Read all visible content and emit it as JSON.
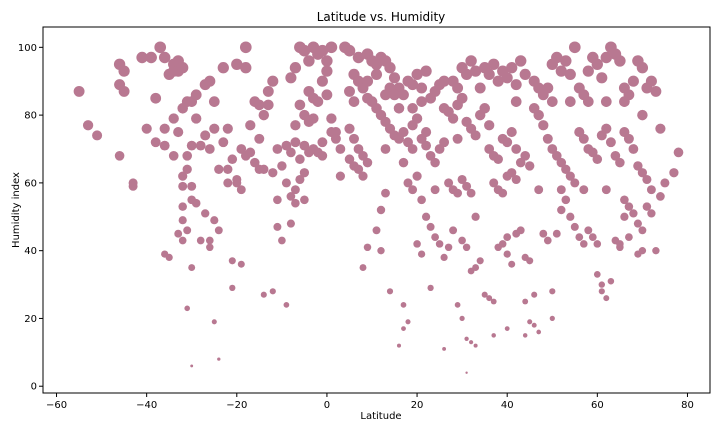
{
  "chart_data": {
    "type": "scatter",
    "title": "Latitude vs. Humidity",
    "xlabel": "Latitude",
    "ylabel": "Humidity index",
    "xlim": [
      -63,
      85
    ],
    "ylim": [
      -2,
      106
    ],
    "xticks": [
      -60,
      -40,
      -20,
      0,
      20,
      40,
      60,
      80
    ],
    "yticks": [
      0,
      20,
      40,
      60,
      80,
      100
    ],
    "grid": false,
    "marker_color": "#b87891",
    "size_encodes": "y",
    "points": [
      [
        -55,
        87
      ],
      [
        -53,
        77
      ],
      [
        -51,
        74
      ],
      [
        -46,
        68
      ],
      [
        -46,
        95
      ],
      [
        -45,
        93
      ],
      [
        -46,
        89
      ],
      [
        -45,
        87
      ],
      [
        -43,
        60
      ],
      [
        -43,
        59
      ],
      [
        -41,
        97
      ],
      [
        -40,
        76
      ],
      [
        -39,
        97
      ],
      [
        -38,
        85
      ],
      [
        -37,
        100
      ],
      [
        -36,
        97
      ],
      [
        -38,
        72
      ],
      [
        -36,
        76
      ],
      [
        -36,
        71
      ],
      [
        -35,
        92
      ],
      [
        -34,
        93
      ],
      [
        -34,
        95
      ],
      [
        -33,
        93
      ],
      [
        -33,
        96
      ],
      [
        -32,
        94
      ],
      [
        -34,
        79
      ],
      [
        -34,
        68
      ],
      [
        -32,
        82
      ],
      [
        -31,
        84
      ],
      [
        -30,
        84
      ],
      [
        -29,
        86
      ],
      [
        -33,
        75
      ],
      [
        -32,
        62
      ],
      [
        -31,
        68
      ],
      [
        -30,
        71
      ],
      [
        -31,
        64
      ],
      [
        -32,
        59
      ],
      [
        -30,
        59
      ],
      [
        -29,
        79
      ],
      [
        -27,
        89
      ],
      [
        -26,
        90
      ],
      [
        -25,
        84
      ],
      [
        -27,
        74
      ],
      [
        -28,
        71
      ],
      [
        -26,
        70
      ],
      [
        -29,
        54
      ],
      [
        -30,
        55
      ],
      [
        -27,
        51
      ],
      [
        -28,
        43
      ],
      [
        -26,
        41
      ],
      [
        -32,
        53
      ],
      [
        -32,
        49
      ],
      [
        -31,
        46
      ],
      [
        -33,
        45
      ],
      [
        -32,
        43
      ],
      [
        -30,
        35
      ],
      [
        -31,
        23
      ],
      [
        -30,
        6
      ],
      [
        -36,
        39
      ],
      [
        -35,
        38
      ],
      [
        -24,
        64
      ],
      [
        -22,
        64
      ],
      [
        -20,
        61
      ],
      [
        -23,
        72
      ],
      [
        -25,
        76
      ],
      [
        -23,
        94
      ],
      [
        -22,
        76
      ],
      [
        -20,
        95
      ],
      [
        -18,
        94
      ],
      [
        -18,
        100
      ],
      [
        -16,
        84
      ],
      [
        -15,
        83
      ],
      [
        -14,
        80
      ],
      [
        -19,
        70
      ],
      [
        -18,
        68
      ],
      [
        -17,
        69
      ],
      [
        -17,
        77
      ],
      [
        -15,
        73
      ],
      [
        -16,
        66
      ],
      [
        -15,
        64
      ],
      [
        -13,
        87
      ],
      [
        -12,
        90
      ],
      [
        -13,
        83
      ],
      [
        -14,
        64
      ],
      [
        -12,
        63
      ],
      [
        -20,
        60
      ],
      [
        -19,
        58
      ],
      [
        -21,
        37
      ],
      [
        -19,
        36
      ],
      [
        -21,
        29
      ],
      [
        -25,
        49
      ],
      [
        -24,
        46
      ],
      [
        -26,
        43
      ],
      [
        -25,
        19
      ],
      [
        -24,
        8
      ],
      [
        -14,
        27
      ],
      [
        -12,
        28
      ],
      [
        -10,
        43
      ],
      [
        -11,
        47
      ],
      [
        -9,
        24
      ],
      [
        -8,
        91
      ],
      [
        -6,
        100
      ],
      [
        -5,
        99
      ],
      [
        -7,
        94
      ],
      [
        -4,
        96
      ],
      [
        -3,
        100
      ],
      [
        -2,
        98
      ],
      [
        -1,
        99
      ],
      [
        0,
        96
      ],
      [
        1,
        100
      ],
      [
        0,
        93
      ],
      [
        -4,
        87
      ],
      [
        -3,
        85
      ],
      [
        -2,
        84
      ],
      [
        -1,
        90
      ],
      [
        -6,
        83
      ],
      [
        -5,
        80
      ],
      [
        -3,
        79
      ],
      [
        -4,
        78
      ],
      [
        -7,
        77
      ],
      [
        -7,
        72
      ],
      [
        -5,
        71
      ],
      [
        -8,
        69
      ],
      [
        -6,
        67
      ],
      [
        -4,
        69
      ],
      [
        -3,
        70
      ],
      [
        -2,
        69
      ],
      [
        -1,
        68
      ],
      [
        -5,
        63
      ],
      [
        -6,
        61
      ],
      [
        -7,
        58
      ],
      [
        -8,
        56
      ],
      [
        -5,
        55
      ],
      [
        -7,
        54
      ],
      [
        0,
        86
      ],
      [
        1,
        79
      ],
      [
        2,
        75
      ],
      [
        3,
        62
      ],
      [
        -1,
        72
      ],
      [
        -9,
        71
      ],
      [
        4,
        100
      ],
      [
        5,
        99
      ],
      [
        7,
        97
      ],
      [
        9,
        98
      ],
      [
        10,
        96
      ],
      [
        11,
        95
      ],
      [
        12,
        97
      ],
      [
        13,
        96
      ],
      [
        14,
        94
      ],
      [
        15,
        91
      ],
      [
        6,
        92
      ],
      [
        7,
        90
      ],
      [
        8,
        88
      ],
      [
        9,
        85
      ],
      [
        10,
        84
      ],
      [
        11,
        82
      ],
      [
        12,
        80
      ],
      [
        13,
        78
      ],
      [
        14,
        76
      ],
      [
        15,
        74
      ],
      [
        5,
        76
      ],
      [
        6,
        73
      ],
      [
        7,
        70
      ],
      [
        8,
        68
      ],
      [
        9,
        66
      ],
      [
        5,
        67
      ],
      [
        6,
        65
      ],
      [
        7,
        64
      ],
      [
        8,
        62
      ],
      [
        13,
        57
      ],
      [
        12,
        52
      ],
      [
        11,
        46
      ],
      [
        12,
        40
      ],
      [
        9,
        41
      ],
      [
        8,
        35
      ],
      [
        14,
        28
      ],
      [
        17,
        24
      ],
      [
        18,
        19
      ],
      [
        17,
        17
      ],
      [
        16,
        12
      ],
      [
        16,
        88
      ],
      [
        17,
        86
      ],
      [
        18,
        90
      ],
      [
        19,
        89
      ],
      [
        20,
        92
      ],
      [
        21,
        88
      ],
      [
        22,
        93
      ],
      [
        23,
        85
      ],
      [
        24,
        87
      ],
      [
        25,
        89
      ],
      [
        17,
        75
      ],
      [
        18,
        72
      ],
      [
        19,
        77
      ],
      [
        20,
        79
      ],
      [
        21,
        73
      ],
      [
        22,
        71
      ],
      [
        23,
        68
      ],
      [
        24,
        66
      ],
      [
        25,
        70
      ],
      [
        26,
        72
      ],
      [
        18,
        60
      ],
      [
        19,
        58
      ],
      [
        20,
        62
      ],
      [
        21,
        55
      ],
      [
        22,
        50
      ],
      [
        23,
        47
      ],
      [
        24,
        44
      ],
      [
        25,
        42
      ],
      [
        26,
        38
      ],
      [
        27,
        41
      ],
      [
        20,
        42
      ],
      [
        21,
        39
      ],
      [
        23,
        29
      ],
      [
        26,
        11
      ],
      [
        28,
        90
      ],
      [
        29,
        88
      ],
      [
        30,
        94
      ],
      [
        31,
        92
      ],
      [
        32,
        96
      ],
      [
        33,
        93
      ],
      [
        27,
        81
      ],
      [
        28,
        79
      ],
      [
        29,
        83
      ],
      [
        30,
        85
      ],
      [
        31,
        78
      ],
      [
        32,
        76
      ],
      [
        33,
        74
      ],
      [
        34,
        80
      ],
      [
        35,
        82
      ],
      [
        36,
        77
      ],
      [
        27,
        60
      ],
      [
        28,
        58
      ],
      [
        29,
        57
      ],
      [
        30,
        61
      ],
      [
        31,
        59
      ],
      [
        32,
        57
      ],
      [
        30,
        43
      ],
      [
        31,
        41
      ],
      [
        32,
        34
      ],
      [
        33,
        35
      ],
      [
        29,
        24
      ],
      [
        30,
        20
      ],
      [
        31,
        14
      ],
      [
        32,
        13
      ],
      [
        33,
        12
      ],
      [
        31,
        4
      ],
      [
        34,
        37
      ],
      [
        35,
        27
      ],
      [
        36,
        26
      ],
      [
        37,
        25
      ],
      [
        35,
        94
      ],
      [
        36,
        92
      ],
      [
        37,
        95
      ],
      [
        38,
        90
      ],
      [
        39,
        93
      ],
      [
        40,
        91
      ],
      [
        41,
        94
      ],
      [
        42,
        89
      ],
      [
        43,
        96
      ],
      [
        44,
        92
      ],
      [
        36,
        70
      ],
      [
        37,
        68
      ],
      [
        38,
        67
      ],
      [
        39,
        73
      ],
      [
        40,
        72
      ],
      [
        41,
        75
      ],
      [
        42,
        70
      ],
      [
        43,
        66
      ],
      [
        44,
        68
      ],
      [
        45,
        65
      ],
      [
        37,
        60
      ],
      [
        38,
        58
      ],
      [
        39,
        57
      ],
      [
        40,
        62
      ],
      [
        41,
        63
      ],
      [
        42,
        61
      ],
      [
        38,
        41
      ],
      [
        39,
        42
      ],
      [
        40,
        39
      ],
      [
        41,
        36
      ],
      [
        40,
        44
      ],
      [
        42,
        45
      ],
      [
        43,
        46
      ],
      [
        44,
        38
      ],
      [
        45,
        37
      ],
      [
        44,
        25
      ],
      [
        45,
        19
      ],
      [
        46,
        18
      ],
      [
        47,
        16
      ],
      [
        44,
        15
      ],
      [
        46,
        90
      ],
      [
        47,
        88
      ],
      [
        48,
        86
      ],
      [
        49,
        88
      ],
      [
        50,
        95
      ],
      [
        51,
        97
      ],
      [
        52,
        93
      ],
      [
        53,
        96
      ],
      [
        54,
        92
      ],
      [
        55,
        100
      ],
      [
        46,
        82
      ],
      [
        47,
        80
      ],
      [
        48,
        77
      ],
      [
        49,
        73
      ],
      [
        50,
        70
      ],
      [
        51,
        68
      ],
      [
        52,
        66
      ],
      [
        53,
        64
      ],
      [
        54,
        62
      ],
      [
        55,
        60
      ],
      [
        48,
        45
      ],
      [
        49,
        43
      ],
      [
        50,
        28
      ],
      [
        51,
        45
      ],
      [
        52,
        52
      ],
      [
        53,
        55
      ],
      [
        54,
        50
      ],
      [
        55,
        47
      ],
      [
        56,
        44
      ],
      [
        57,
        42
      ],
      [
        56,
        88
      ],
      [
        57,
        86
      ],
      [
        58,
        93
      ],
      [
        59,
        97
      ],
      [
        60,
        95
      ],
      [
        61,
        91
      ],
      [
        62,
        97
      ],
      [
        63,
        100
      ],
      [
        64,
        98
      ],
      [
        65,
        96
      ],
      [
        56,
        75
      ],
      [
        57,
        73
      ],
      [
        58,
        70
      ],
      [
        59,
        69
      ],
      [
        60,
        67
      ],
      [
        61,
        74
      ],
      [
        62,
        76
      ],
      [
        63,
        72
      ],
      [
        64,
        68
      ],
      [
        65,
        66
      ],
      [
        58,
        46
      ],
      [
        59,
        44
      ],
      [
        60,
        42
      ],
      [
        61,
        28
      ],
      [
        62,
        26
      ],
      [
        63,
        31
      ],
      [
        60,
        33
      ],
      [
        61,
        30
      ],
      [
        64,
        43
      ],
      [
        65,
        42
      ],
      [
        66,
        88
      ],
      [
        67,
        86
      ],
      [
        68,
        90
      ],
      [
        69,
        96
      ],
      [
        70,
        94
      ],
      [
        71,
        88
      ],
      [
        72,
        90
      ],
      [
        73,
        87
      ],
      [
        66,
        75
      ],
      [
        67,
        73
      ],
      [
        68,
        70
      ],
      [
        69,
        65
      ],
      [
        70,
        63
      ],
      [
        71,
        61
      ],
      [
        72,
        58
      ],
      [
        66,
        55
      ],
      [
        67,
        53
      ],
      [
        68,
        51
      ],
      [
        69,
        48
      ],
      [
        70,
        46
      ],
      [
        71,
        53
      ],
      [
        72,
        51
      ],
      [
        73,
        40
      ],
      [
        74,
        56
      ],
      [
        75,
        60
      ],
      [
        77,
        63
      ],
      [
        78,
        69
      ],
      [
        69,
        39
      ],
      [
        67,
        44
      ],
      [
        65,
        41
      ],
      [
        1,
        75
      ],
      [
        2,
        73
      ],
      [
        3,
        70
      ],
      [
        -9,
        60
      ],
      [
        -10,
        65
      ],
      [
        -11,
        70
      ],
      [
        -8,
        48
      ],
      [
        -11,
        55
      ],
      [
        -21,
        67
      ],
      [
        -22,
        60
      ],
      [
        14,
        88
      ],
      [
        15,
        86
      ],
      [
        16,
        82
      ],
      [
        19,
        82
      ],
      [
        21,
        84
      ],
      [
        26,
        90
      ],
      [
        34,
        88
      ],
      [
        42,
        84
      ],
      [
        50,
        84
      ],
      [
        54,
        84
      ],
      [
        58,
        84
      ],
      [
        62,
        84
      ],
      [
        66,
        84
      ],
      [
        70,
        80
      ],
      [
        74,
        76
      ],
      [
        13,
        70
      ],
      [
        17,
        66
      ],
      [
        24,
        58
      ],
      [
        28,
        46
      ],
      [
        33,
        50
      ],
      [
        47,
        58
      ],
      [
        52,
        58
      ],
      [
        57,
        58
      ],
      [
        62,
        58
      ],
      [
        66,
        50
      ],
      [
        70,
        40
      ],
      [
        46,
        27
      ],
      [
        50,
        20
      ],
      [
        40,
        17
      ],
      [
        37,
        15
      ],
      [
        5,
        87
      ],
      [
        6,
        84
      ],
      [
        9,
        90
      ],
      [
        11,
        92
      ],
      [
        13,
        86
      ],
      [
        16,
        73
      ],
      [
        19,
        70
      ],
      [
        22,
        75
      ],
      [
        26,
        82
      ],
      [
        29,
        73
      ]
    ]
  }
}
